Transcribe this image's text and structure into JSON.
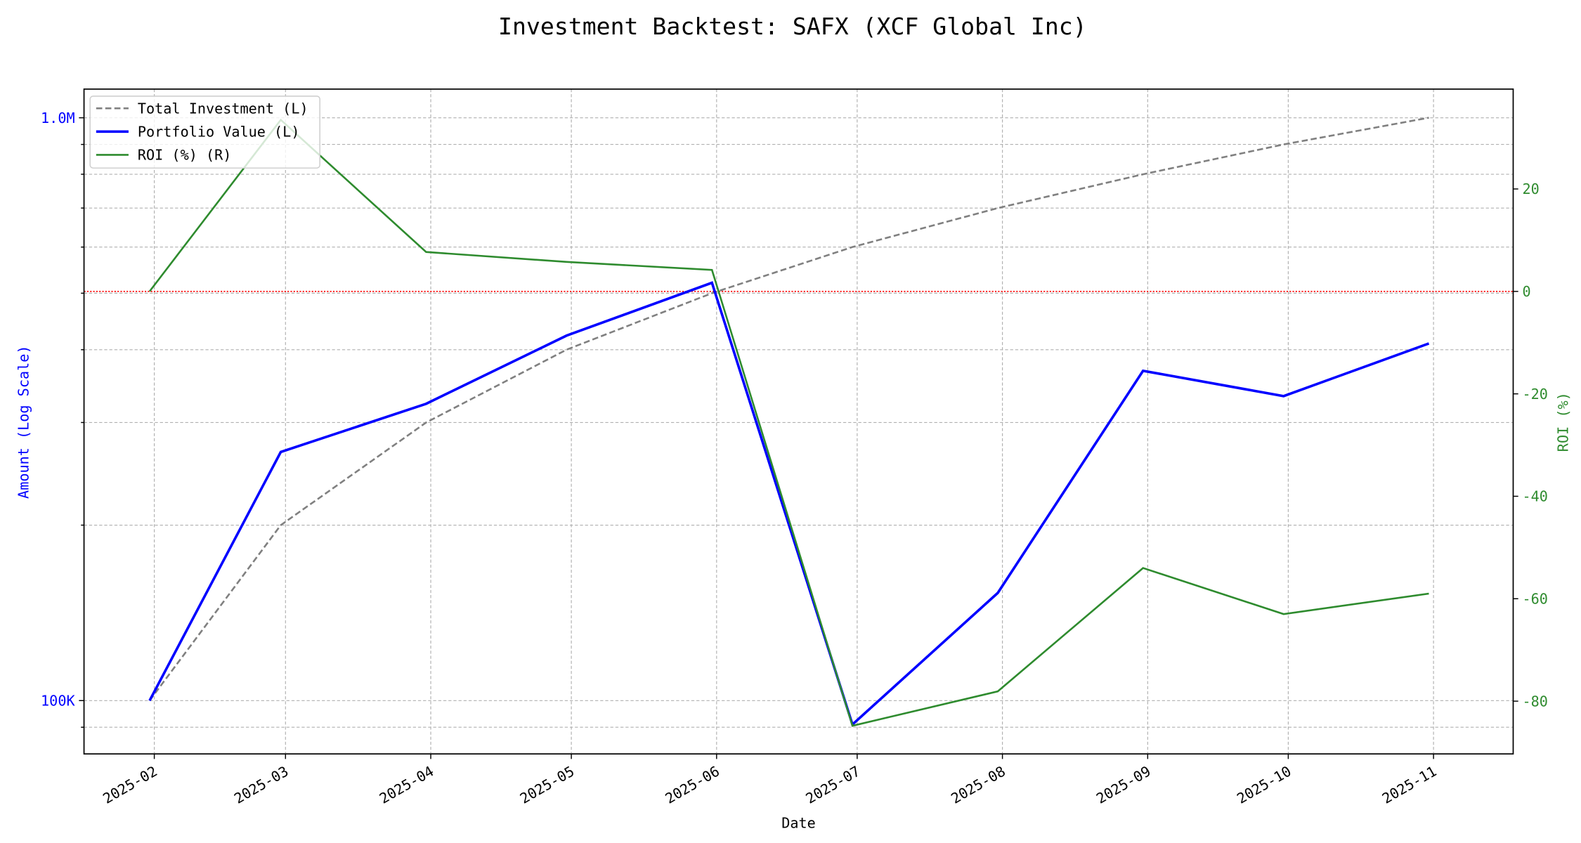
{
  "chart_data": {
    "type": "line",
    "title": "Investment Backtest: SAFX (XCF Global Inc)",
    "xlabel": "Date",
    "ylabel_left": "Amount (Log Scale)",
    "ylabel_right": "ROI (%)",
    "x": [
      "2025-01-31",
      "2025-02-28",
      "2025-03-31",
      "2025-04-30",
      "2025-05-31",
      "2025-06-30",
      "2025-07-31",
      "2025-08-31",
      "2025-09-30",
      "2025-10-31"
    ],
    "xlim": [
      "2025-01-17",
      "2025-11-18"
    ],
    "x_ticks": [
      "2025-02",
      "2025-03",
      "2025-04",
      "2025-05",
      "2025-06",
      "2025-07",
      "2025-08",
      "2025-09",
      "2025-10",
      "2025-11"
    ],
    "ylim_left": [
      81000,
      1120000
    ],
    "yscale_left": "log",
    "y_ticks_left": [
      {
        "value": 100000,
        "label": "100K"
      },
      {
        "value": 1000000,
        "label": "1.0M"
      }
    ],
    "y_minor_left": [
      90000,
      200000,
      300000,
      400000,
      500000,
      600000,
      700000,
      800000,
      900000
    ],
    "ylim_right": [
      -90.3,
      39.5
    ],
    "y_ticks_right": [
      20,
      0,
      -20,
      -40,
      -60,
      -80
    ],
    "grid": true,
    "legend_position": "top-left",
    "series": [
      {
        "name": "Total Investment (L)",
        "axis": "left",
        "color": "#808080",
        "style": "dashed",
        "values": [
          100000,
          200000,
          300000,
          400000,
          500000,
          600000,
          700000,
          800000,
          900000,
          1000000
        ]
      },
      {
        "name": "Portfolio Value (L)",
        "axis": "left",
        "color": "#0000ff",
        "style": "solid",
        "values": [
          100000,
          267000,
          323000,
          423000,
          521000,
          91000,
          153000,
          368000,
          333000,
          410000
        ]
      },
      {
        "name": "ROI (%) (R)",
        "axis": "right",
        "color": "#2e8b2e",
        "style": "solid",
        "values": [
          0,
          33.5,
          7.7,
          5.75,
          4.2,
          -84.8,
          -78.1,
          -54.0,
          -63.0,
          -59.0
        ]
      }
    ],
    "reference_line": {
      "axis": "right",
      "value": 0,
      "color": "#ff0000",
      "style": "dotted"
    }
  }
}
